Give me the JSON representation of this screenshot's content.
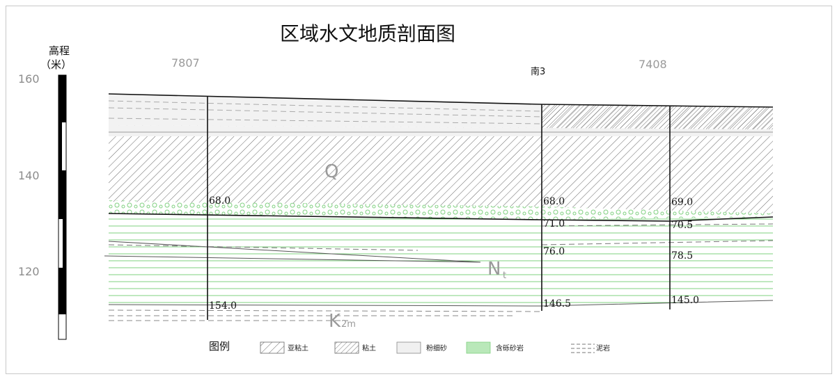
{
  "title": "区域水文地质剖面图",
  "elevation_axis": {
    "label_line1": "高程",
    "label_line2": "（米）",
    "ticks": [
      "160",
      "140",
      "120"
    ]
  },
  "wells": [
    {
      "name": "7807",
      "top_depth": "68.0",
      "bottom_depth": "154.0"
    },
    {
      "name": "南3",
      "top_depth": "68.0",
      "mid_depth_1": "71.0",
      "mid_depth_2": "76.0",
      "bottom_depth": "146.5"
    },
    {
      "name": "7408",
      "top_depth": "69.0",
      "mid_depth_1": "70.5",
      "mid_depth_2": "78.5",
      "bottom_depth": "145.0"
    }
  ],
  "units": {
    "q": "Q",
    "n_main": "N",
    "n_sub": "t",
    "k_main": "K",
    "k_sub": "2m"
  },
  "legend": {
    "title": "图例",
    "items": [
      {
        "label": "亚粘土",
        "pattern": "hatch-light"
      },
      {
        "label": "粘土",
        "pattern": "hatch-dense"
      },
      {
        "label": "粉细砂",
        "pattern": "plain-gray"
      },
      {
        "label": "含砾砂岩",
        "pattern": "green"
      },
      {
        "label": "泥岩",
        "pattern": "dash"
      }
    ]
  },
  "colors": {
    "green_line": "#7fd07f",
    "green_fill": "#b9e8b9",
    "hatch": "#555555",
    "gravel": "#7fd07f"
  }
}
